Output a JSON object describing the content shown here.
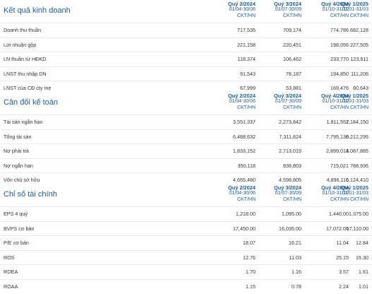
{
  "quarters": [
    {
      "name": "Quý 2/2024",
      "range": "01/04-30/06",
      "unit": "CKT/HN"
    },
    {
      "name": "Quý 3/2024",
      "range": "01/07-30/09",
      "unit": "CKT/HN"
    },
    {
      "name": "Quý 4/2024",
      "range": "01/10-31/12",
      "unit": "CKT/HN"
    },
    {
      "name": "Quý 1/2025",
      "range": "01/01-31/03",
      "unit": "CKT/HN"
    }
  ],
  "sections": [
    {
      "title": "Kết quả kinh doanh",
      "rows": [
        {
          "label": "Doanh thu thuần",
          "values": [
            "717,535",
            "709,174",
            "774,786",
            "682,128"
          ]
        },
        {
          "label": "Lợi nhuận gộp",
          "values": [
            "221,158",
            "220,451",
            "198,056",
            "227,505"
          ]
        },
        {
          "label": "LN thuần từ HĐKD",
          "values": [
            "118,374",
            "106,462",
            "233,770",
            "123,611"
          ]
        },
        {
          "label": "LNST thu nhập DN",
          "values": [
            "91,543",
            "78,187",
            "194,850",
            "111,206"
          ]
        },
        {
          "label": "LNST của CĐ cty mẹ",
          "values": [
            "67,999",
            "53,881",
            "169,476",
            "80,643"
          ]
        }
      ]
    },
    {
      "title": "Cân đối kế toán",
      "rows": [
        {
          "label": "Tài sản ngắn hạn",
          "values": [
            "3,551,337",
            "2,273,842",
            "1,811,557",
            "2,184,150"
          ]
        },
        {
          "label": "Tổng tài sản",
          "values": [
            "6,488,632",
            "7,311,824",
            "7,795,130",
            "8,212,295"
          ]
        },
        {
          "label": "Nợ phải trả",
          "values": [
            "1,833,152",
            "2,713,019",
            "2,899,014",
            "3,087,885"
          ]
        },
        {
          "label": "Nợ ngắn hạn",
          "values": [
            "350,118",
            "938,803",
            "715,021",
            "788,936"
          ]
        },
        {
          "label": "Vốn chủ sở hữu",
          "values": [
            "4,655,480",
            "4,598,805",
            "4,896,116",
            "5,124,410"
          ]
        }
      ]
    },
    {
      "title": "Chỉ số tài chính",
      "rows": [
        {
          "label": "EPS 4 quý",
          "values": [
            "1,218.00",
            "1,095.00",
            "1,440.00",
            "1,375.00"
          ]
        },
        {
          "label": "BVPS cơ bản",
          "values": [
            "17,450.00",
            "16,035.00",
            "17,072.00",
            "17,110.00"
          ]
        },
        {
          "label": "P/E cơ bản",
          "values": [
            "18.07",
            "16.21",
            "11.04",
            "12.84"
          ]
        },
        {
          "label": "ROS",
          "values": [
            "12.76",
            "11.03",
            "25.15",
            "16.30"
          ]
        },
        {
          "label": "ROEA",
          "values": [
            "1.70",
            "1.16",
            "3.57",
            "1.61"
          ]
        },
        {
          "label": "ROAA",
          "values": [
            "1.15",
            "0.78",
            "2.24",
            "1.01"
          ]
        }
      ]
    }
  ]
}
